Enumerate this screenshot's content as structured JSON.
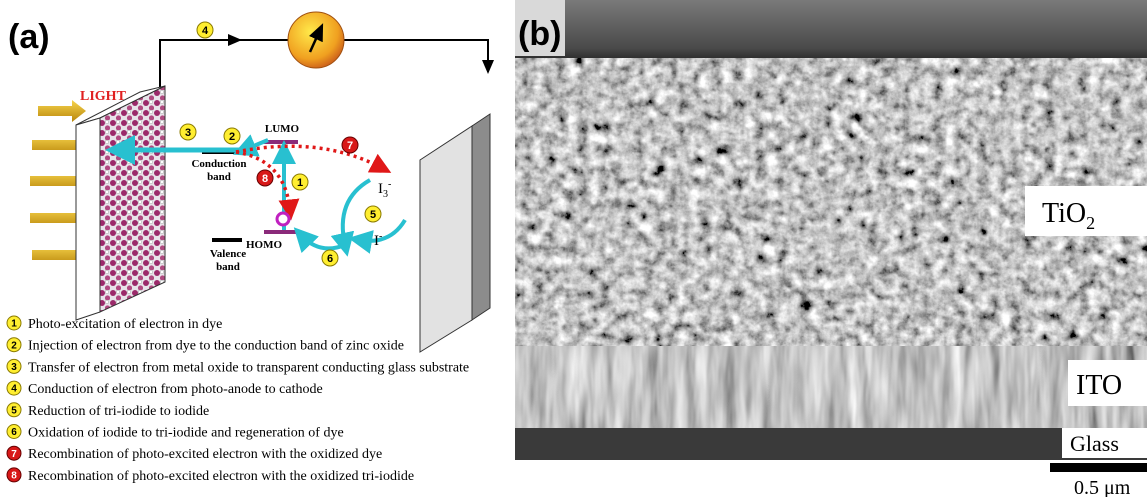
{
  "panel_a": {
    "label": "(a)",
    "light": "LIGHT",
    "lumo": "LUMO",
    "homo": "HOMO",
    "conduction_band": [
      "Conduction",
      "band"
    ],
    "valence_band": [
      "Valence",
      "band"
    ],
    "triiodide": {
      "base": "I",
      "sub": "3",
      "sup": "-"
    },
    "iodide": {
      "base": "I",
      "sup": "-"
    },
    "steps": [
      {
        "number": "1",
        "text": "Photo-excitation of electron in dye"
      },
      {
        "number": "2",
        "text": "Injection of electron from dye to the conduction band of zinc oxide"
      },
      {
        "number": "3",
        "text": "Transfer of electron from metal oxide to transparent conducting glass substrate"
      },
      {
        "number": "4",
        "text": "Conduction of electron from photo-anode to cathode"
      },
      {
        "number": "5",
        "text": "Reduction of tri-iodide to iodide"
      },
      {
        "number": "6",
        "text": "Oxidation of iodide to tri-iodide and regeneration of dye"
      },
      {
        "number": "7",
        "text": "Recombination of photo-excited electron with the oxidized dye"
      },
      {
        "number": "8",
        "text": "Recombination of photo-excited electron with the oxidized tri-iodide"
      }
    ]
  },
  "panel_b": {
    "label": "(b)",
    "tio2": {
      "base": "TiO",
      "sub": "2"
    },
    "ito": "ITO",
    "glass": "Glass",
    "scale_bar": "0.5 μm"
  }
}
